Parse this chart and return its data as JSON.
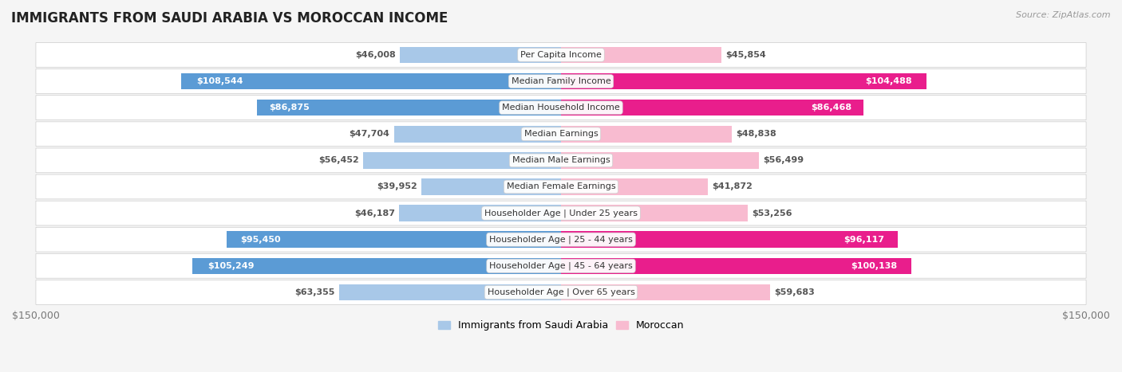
{
  "title": "IMMIGRANTS FROM SAUDI ARABIA VS MOROCCAN INCOME",
  "source": "Source: ZipAtlas.com",
  "categories": [
    "Per Capita Income",
    "Median Family Income",
    "Median Household Income",
    "Median Earnings",
    "Median Male Earnings",
    "Median Female Earnings",
    "Householder Age | Under 25 years",
    "Householder Age | 25 - 44 years",
    "Householder Age | 45 - 64 years",
    "Householder Age | Over 65 years"
  ],
  "saudi_values": [
    46008,
    108544,
    86875,
    47704,
    56452,
    39952,
    46187,
    95450,
    105249,
    63355
  ],
  "moroccan_values": [
    45854,
    104488,
    86468,
    48838,
    56499,
    41872,
    53256,
    96117,
    100138,
    59683
  ],
  "saudi_labels": [
    "$46,008",
    "$108,544",
    "$86,875",
    "$47,704",
    "$56,452",
    "$39,952",
    "$46,187",
    "$95,450",
    "$105,249",
    "$63,355"
  ],
  "moroccan_labels": [
    "$45,854",
    "$104,488",
    "$86,468",
    "$48,838",
    "$56,499",
    "$41,872",
    "$53,256",
    "$96,117",
    "$100,138",
    "$59,683"
  ],
  "saudi_color_light": "#a8c8e8",
  "saudi_color_dark": "#5b9bd5",
  "moroccan_color_light": "#f8bbd0",
  "moroccan_color_dark": "#e91e8c",
  "dark_threshold": 70000,
  "label_inside_color": "#ffffff",
  "label_outside_color": "#555555",
  "bar_height": 0.62,
  "max_val": 150000,
  "bg_color": "#f5f5f5",
  "row_bg_color": "#ffffff",
  "row_border_color": "#cccccc",
  "legend_saudi": "Immigrants from Saudi Arabia",
  "legend_moroccan": "Moroccan",
  "xlabel_left": "$150,000",
  "xlabel_right": "$150,000",
  "label_threshold": 15000,
  "title_fontsize": 12,
  "source_fontsize": 8,
  "label_fontsize": 8,
  "cat_fontsize": 8
}
